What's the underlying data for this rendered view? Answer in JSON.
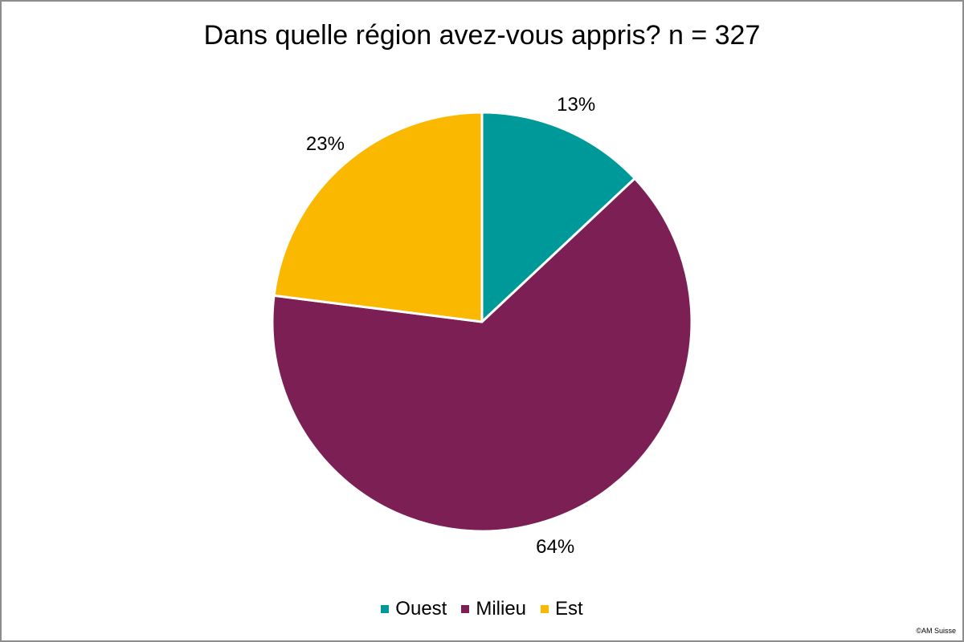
{
  "chart_data": {
    "type": "pie",
    "title": "Dans quelle région avez-vous appris? n = 327",
    "slices": [
      {
        "name": "Ouest",
        "value": 13,
        "label": "13%",
        "color": "#009999"
      },
      {
        "name": "Milieu",
        "value": 64,
        "label": "64%",
        "color": "#7b1f55"
      },
      {
        "name": "Est",
        "value": 23,
        "label": "23%",
        "color": "#fbb800"
      }
    ],
    "legend_position": "bottom"
  },
  "copyright": "©AM Suisse"
}
